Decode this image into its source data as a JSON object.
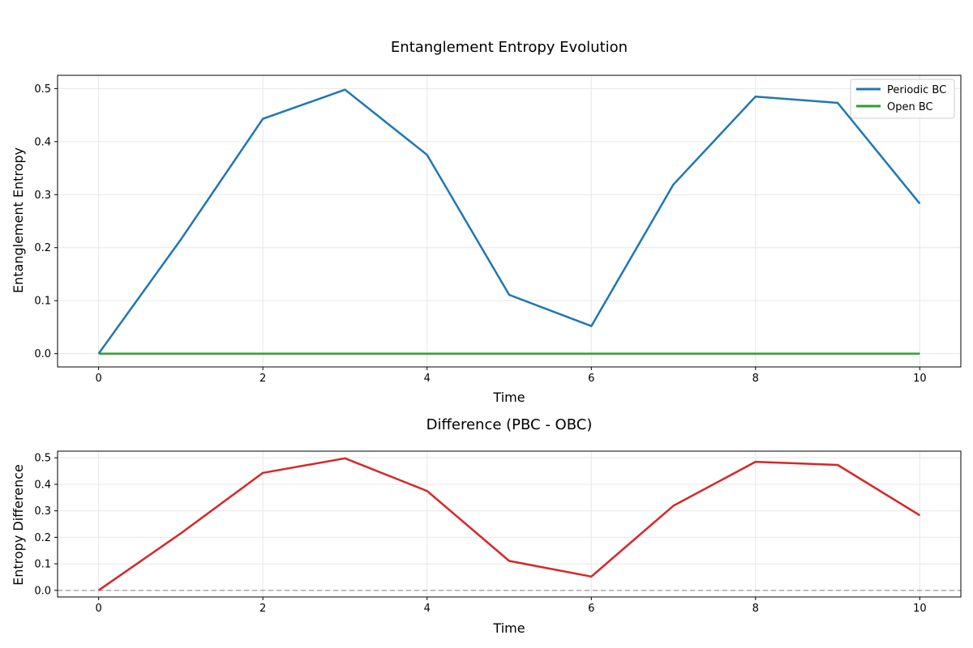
{
  "chart_data": [
    {
      "type": "line",
      "title": "Entanglement Entropy Evolution",
      "xlabel": "Time",
      "ylabel": "Entanglement Entropy",
      "xlim": [
        -0.5,
        10.5
      ],
      "ylim": [
        -0.025,
        0.525
      ],
      "xticks": [
        0,
        2,
        4,
        6,
        8,
        10
      ],
      "xtick_labels": [
        "0",
        "2",
        "4",
        "6",
        "8",
        "10"
      ],
      "yticks": [
        0.0,
        0.1,
        0.2,
        0.3,
        0.4,
        0.5
      ],
      "ytick_labels": [
        "0.0",
        "0.1",
        "0.2",
        "0.3",
        "0.4",
        "0.5"
      ],
      "grid": true,
      "legend_position": "top-right",
      "x": [
        0,
        1,
        2,
        3,
        4,
        5,
        6,
        7,
        8,
        9,
        10
      ],
      "series": [
        {
          "name": "Periodic BC",
          "color": "#1f77b4",
          "values": [
            0.0,
            0.215,
            0.443,
            0.498,
            0.375,
            0.111,
            0.052,
            0.319,
            0.485,
            0.473,
            0.283
          ]
        },
        {
          "name": "Open BC",
          "color": "#2ca02c",
          "values": [
            0,
            0,
            0,
            0,
            0,
            0,
            0,
            0,
            0,
            0,
            0
          ]
        }
      ]
    },
    {
      "type": "line",
      "title": "Difference (PBC - OBC)",
      "xlabel": "Time",
      "ylabel": "Entropy Difference",
      "xlim": [
        -0.5,
        10.5
      ],
      "ylim": [
        -0.025,
        0.525
      ],
      "xticks": [
        0,
        2,
        4,
        6,
        8,
        10
      ],
      "xtick_labels": [
        "0",
        "2",
        "4",
        "6",
        "8",
        "10"
      ],
      "yticks": [
        0.0,
        0.1,
        0.2,
        0.3,
        0.4,
        0.5
      ],
      "ytick_labels": [
        "0.0",
        "0.1",
        "0.2",
        "0.3",
        "0.4",
        "0.5"
      ],
      "grid": true,
      "reference_line": {
        "y": 0,
        "style": "dashed",
        "color": "#aaaaaa"
      },
      "x": [
        0,
        1,
        2,
        3,
        4,
        5,
        6,
        7,
        8,
        9,
        10
      ],
      "series": [
        {
          "color": "#d62728",
          "values": [
            0.0,
            0.215,
            0.443,
            0.498,
            0.375,
            0.111,
            0.052,
            0.319,
            0.485,
            0.473,
            0.283
          ]
        }
      ]
    }
  ]
}
